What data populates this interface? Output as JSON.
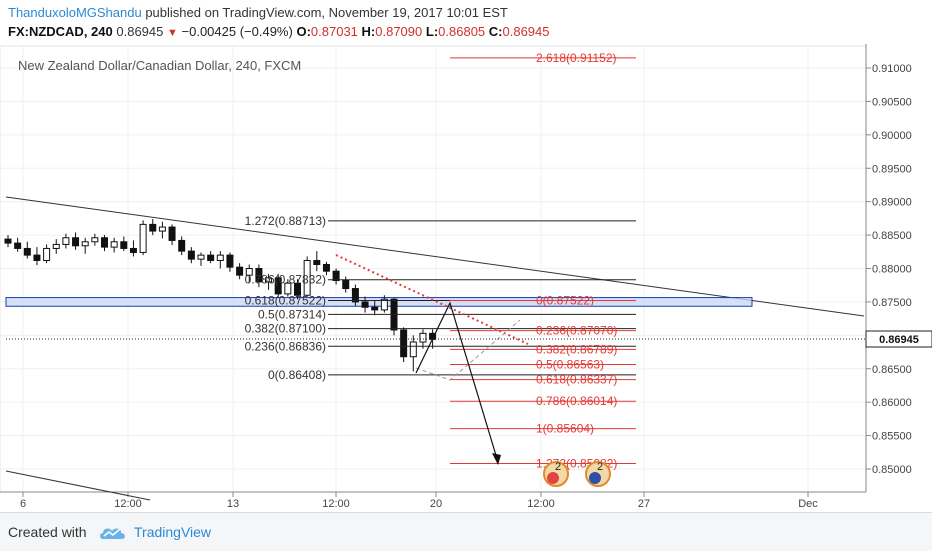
{
  "header": {
    "author": "ThanduxoloMGShandu",
    "published": "published on TradingView.com, November 19, 2017 10:01 EST",
    "symbol": "FX:NZDCAD, 240",
    "last": "0.86945",
    "change": "−0.00425 (−0.49%)",
    "o_label": "O:",
    "o_value": "0.87031",
    "h_label": "H:",
    "h_value": "0.87090",
    "l_label": "L:",
    "l_value": "0.86805",
    "c_label": "C:",
    "c_value": "0.86945"
  },
  "footer": {
    "created_with": "Created with",
    "brand": "TradingView"
  },
  "colors": {
    "up": "#ffffff",
    "down": "#111111",
    "fib_red": "#e53935",
    "zone": "#1a3fb3",
    "accent": "#2b8ad6"
  },
  "chart_data": {
    "type": "candlestick",
    "title": "New Zealand Dollar/Canadian Dollar, 240, FXCM",
    "ylim": [
      0.8485,
      0.9122
    ],
    "y_ticks": [
      "0.91000",
      "0.90500",
      "0.90000",
      "0.89500",
      "0.89000",
      "0.88500",
      "0.88000",
      "0.87500",
      "0.87000",
      "0.86500",
      "0.86000",
      "0.85500",
      "0.85000"
    ],
    "x_ticks": [
      "6",
      "12:00",
      "13",
      "12:00",
      "20",
      "12:00",
      "27",
      "Dec"
    ],
    "last_price": "0.86945",
    "candles": [
      {
        "o": 0.8844,
        "h": 0.885,
        "l": 0.8832,
        "c": 0.8838
      },
      {
        "o": 0.8838,
        "h": 0.8846,
        "l": 0.8825,
        "c": 0.883
      },
      {
        "o": 0.883,
        "h": 0.884,
        "l": 0.8815,
        "c": 0.882
      },
      {
        "o": 0.882,
        "h": 0.8832,
        "l": 0.8805,
        "c": 0.8812
      },
      {
        "o": 0.8812,
        "h": 0.8836,
        "l": 0.8808,
        "c": 0.883
      },
      {
        "o": 0.883,
        "h": 0.8844,
        "l": 0.8822,
        "c": 0.8836
      },
      {
        "o": 0.8836,
        "h": 0.8852,
        "l": 0.883,
        "c": 0.8846
      },
      {
        "o": 0.8846,
        "h": 0.8854,
        "l": 0.8828,
        "c": 0.8834
      },
      {
        "o": 0.8834,
        "h": 0.8846,
        "l": 0.8822,
        "c": 0.884
      },
      {
        "o": 0.884,
        "h": 0.8852,
        "l": 0.8834,
        "c": 0.8846
      },
      {
        "o": 0.8846,
        "h": 0.885,
        "l": 0.8826,
        "c": 0.8832
      },
      {
        "o": 0.8832,
        "h": 0.8846,
        "l": 0.8824,
        "c": 0.884
      },
      {
        "o": 0.884,
        "h": 0.8848,
        "l": 0.8826,
        "c": 0.883
      },
      {
        "o": 0.883,
        "h": 0.8842,
        "l": 0.8818,
        "c": 0.8824
      },
      {
        "o": 0.8824,
        "h": 0.8872,
        "l": 0.882,
        "c": 0.8866
      },
      {
        "o": 0.8866,
        "h": 0.8874,
        "l": 0.885,
        "c": 0.8856
      },
      {
        "o": 0.8856,
        "h": 0.887,
        "l": 0.8845,
        "c": 0.8862
      },
      {
        "o": 0.8862,
        "h": 0.8866,
        "l": 0.8835,
        "c": 0.8842
      },
      {
        "o": 0.8842,
        "h": 0.8848,
        "l": 0.882,
        "c": 0.8826
      },
      {
        "o": 0.8826,
        "h": 0.8832,
        "l": 0.8808,
        "c": 0.8814
      },
      {
        "o": 0.8814,
        "h": 0.8824,
        "l": 0.8804,
        "c": 0.882
      },
      {
        "o": 0.882,
        "h": 0.8826,
        "l": 0.8808,
        "c": 0.8812
      },
      {
        "o": 0.8812,
        "h": 0.8826,
        "l": 0.88,
        "c": 0.882
      },
      {
        "o": 0.882,
        "h": 0.8824,
        "l": 0.8795,
        "c": 0.8802
      },
      {
        "o": 0.8802,
        "h": 0.8808,
        "l": 0.8784,
        "c": 0.879
      },
      {
        "o": 0.879,
        "h": 0.8806,
        "l": 0.8778,
        "c": 0.88
      },
      {
        "o": 0.88,
        "h": 0.8806,
        "l": 0.8772,
        "c": 0.878
      },
      {
        "o": 0.878,
        "h": 0.8792,
        "l": 0.8768,
        "c": 0.8786
      },
      {
        "o": 0.8786,
        "h": 0.8792,
        "l": 0.8756,
        "c": 0.8762
      },
      {
        "o": 0.8762,
        "h": 0.8784,
        "l": 0.8758,
        "c": 0.8778
      },
      {
        "o": 0.8778,
        "h": 0.8784,
        "l": 0.8754,
        "c": 0.876
      },
      {
        "o": 0.876,
        "h": 0.8818,
        "l": 0.8758,
        "c": 0.8812
      },
      {
        "o": 0.8812,
        "h": 0.8826,
        "l": 0.8796,
        "c": 0.8806
      },
      {
        "o": 0.8806,
        "h": 0.881,
        "l": 0.879,
        "c": 0.8796
      },
      {
        "o": 0.8796,
        "h": 0.88,
        "l": 0.8776,
        "c": 0.8782
      },
      {
        "o": 0.8782,
        "h": 0.8788,
        "l": 0.8764,
        "c": 0.877
      },
      {
        "o": 0.877,
        "h": 0.8776,
        "l": 0.8744,
        "c": 0.875
      },
      {
        "o": 0.875,
        "h": 0.8758,
        "l": 0.8734,
        "c": 0.8742
      },
      {
        "o": 0.8742,
        "h": 0.8752,
        "l": 0.873,
        "c": 0.8738
      },
      {
        "o": 0.8738,
        "h": 0.876,
        "l": 0.8734,
        "c": 0.8754
      },
      {
        "o": 0.8754,
        "h": 0.8756,
        "l": 0.87,
        "c": 0.8708
      },
      {
        "o": 0.8708,
        "h": 0.8712,
        "l": 0.866,
        "c": 0.8668
      },
      {
        "o": 0.8668,
        "h": 0.87,
        "l": 0.8646,
        "c": 0.869
      },
      {
        "o": 0.869,
        "h": 0.8709,
        "l": 0.868,
        "c": 0.8703
      },
      {
        "o": 0.8703,
        "h": 0.8709,
        "l": 0.868,
        "c": 0.8694
      }
    ],
    "fib_left": [
      {
        "label": "1.272(0.88713)",
        "value": 0.88713
      },
      {
        "label": "0.786(0.87832)",
        "value": 0.87832
      },
      {
        "label": "0.618(0.87522)",
        "value": 0.87522
      },
      {
        "label": "0.5(0.87314)",
        "value": 0.87314
      },
      {
        "label": "0.382(0.87100)",
        "value": 0.871
      },
      {
        "label": "0.236(0.86836)",
        "value": 0.86836
      },
      {
        "label": "0(0.86408)",
        "value": 0.86408
      }
    ],
    "fib_right": [
      {
        "label": "2.618(0.91152)",
        "value": 0.91152
      },
      {
        "label": "0(0.87522)",
        "value": 0.87522
      },
      {
        "label": "0.236(0.87070)",
        "value": 0.8707
      },
      {
        "label": "0.382(0.86789)",
        "value": 0.86789
      },
      {
        "label": "0.5(0.86563)",
        "value": 0.86563
      },
      {
        "label": "0.618(0.86337)",
        "value": 0.86337
      },
      {
        "label": "0.786(0.86014)",
        "value": 0.86014
      },
      {
        "label": "1(0.85604)",
        "value": 0.85604
      },
      {
        "label": "1.272(0.85082)",
        "value": 0.85082
      }
    ],
    "zone": [
      0.87435,
      0.87565
    ],
    "event_markers": [
      "2",
      "2"
    ]
  }
}
